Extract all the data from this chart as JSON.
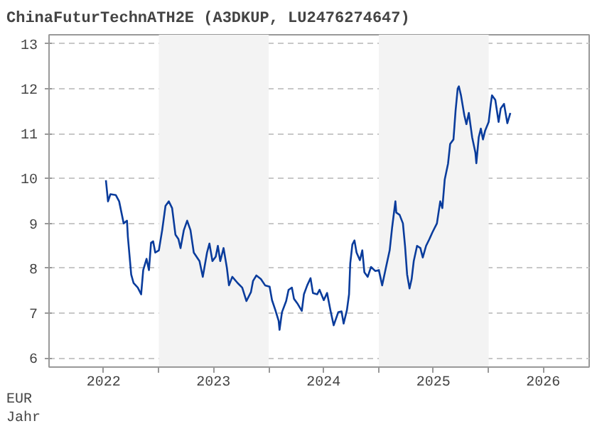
{
  "chart_data": {
    "type": "line",
    "title": "ChinaFuturTechnATH2E (A3DKUP, LU2476274647)",
    "xlabel": "Jahr",
    "ylabel": "EUR",
    "x": [
      "2022-07-09",
      "2022-07-16",
      "2022-07-24",
      "2022-08-11",
      "2022-08-22",
      "2022-09-06",
      "2022-09-17",
      "2022-09-20",
      "2022-10-01",
      "2022-10-09",
      "2022-10-23",
      "2022-11-03",
      "2022-11-10",
      "2022-11-21",
      "2022-11-29",
      "2022-12-06",
      "2022-12-13",
      "2022-12-20",
      "2023-01-01",
      "2023-01-12",
      "2023-01-23",
      "2023-02-03",
      "2023-02-14",
      "2023-02-25",
      "2023-03-07",
      "2023-03-14",
      "2023-03-25",
      "2023-04-05",
      "2023-04-16",
      "2023-04-27",
      "2023-05-16",
      "2023-05-27",
      "2023-06-10",
      "2023-06-18",
      "2023-06-28",
      "2023-07-09",
      "2023-07-16",
      "2023-07-24",
      "2023-08-04",
      "2023-08-15",
      "2023-08-22",
      "2023-09-02",
      "2023-09-20",
      "2023-10-05",
      "2023-10-19",
      "2023-11-03",
      "2023-11-10",
      "2023-11-21",
      "2023-12-06",
      "2023-12-20",
      "2024-01-04",
      "2024-01-12",
      "2024-01-23",
      "2024-02-03",
      "2024-02-06",
      "2024-02-14",
      "2024-02-28",
      "2024-03-07",
      "2024-03-18",
      "2024-03-25",
      "2024-04-05",
      "2024-04-20",
      "2024-04-27",
      "2024-05-08",
      "2024-05-19",
      "2024-05-27",
      "2024-06-10",
      "2024-06-18",
      "2024-07-02",
      "2024-07-13",
      "2024-07-24",
      "2024-08-04",
      "2024-08-19",
      "2024-08-30",
      "2024-09-06",
      "2024-09-17",
      "2024-09-24",
      "2024-09-28",
      "2024-10-05",
      "2024-10-12",
      "2024-10-19",
      "2024-10-30",
      "2024-11-07",
      "2024-11-14",
      "2024-11-25",
      "2024-12-06",
      "2024-12-20",
      "2025-01-01",
      "2025-01-12",
      "2025-01-26",
      "2025-02-06",
      "2025-02-14",
      "2025-02-25",
      "2025-02-28",
      "2025-03-11",
      "2025-03-22",
      "2025-03-29",
      "2025-04-05",
      "2025-04-13",
      "2025-04-20",
      "2025-04-27",
      "2025-05-08",
      "2025-05-19",
      "2025-05-27",
      "2025-06-07",
      "2025-06-18",
      "2025-06-28",
      "2025-07-13",
      "2025-07-24",
      "2025-07-31",
      "2025-08-08",
      "2025-08-19",
      "2025-08-26",
      "2025-09-06",
      "2025-09-13",
      "2025-09-20",
      "2025-09-24",
      "2025-10-01",
      "2025-10-12",
      "2025-10-19",
      "2025-10-27",
      "2025-11-07",
      "2025-11-18",
      "2025-11-21",
      "2025-11-29",
      "2025-12-06",
      "2025-12-13",
      "2025-12-20",
      "2026-01-01",
      "2026-01-08",
      "2026-01-12",
      "2026-01-23",
      "2026-02-03",
      "2026-02-10",
      "2026-02-21",
      "2026-03-04",
      "2026-03-14"
    ],
    "series": [
      {
        "color": "#0a3c9c",
        "values": [
          9.96,
          9.49,
          9.65,
          9.63,
          9.49,
          9.0,
          9.06,
          8.7,
          7.86,
          7.67,
          7.57,
          7.42,
          7.96,
          8.21,
          7.96,
          8.57,
          8.6,
          8.35,
          8.4,
          8.85,
          9.39,
          9.49,
          9.34,
          8.75,
          8.65,
          8.45,
          8.85,
          9.06,
          8.85,
          8.35,
          8.16,
          7.81,
          8.35,
          8.55,
          8.16,
          8.26,
          8.5,
          8.16,
          8.45,
          8.01,
          7.62,
          7.81,
          7.67,
          7.57,
          7.27,
          7.47,
          7.72,
          7.84,
          7.76,
          7.62,
          7.59,
          7.29,
          7.07,
          6.83,
          6.63,
          7.02,
          7.27,
          7.52,
          7.57,
          7.32,
          7.22,
          7.05,
          7.42,
          7.62,
          7.78,
          7.45,
          7.42,
          7.52,
          7.29,
          7.45,
          7.07,
          6.73,
          7.02,
          7.04,
          6.77,
          7.07,
          7.42,
          8.11,
          8.53,
          8.62,
          8.35,
          8.18,
          8.4,
          7.91,
          7.81,
          8.03,
          7.94,
          7.96,
          7.62,
          8.06,
          8.4,
          8.9,
          9.49,
          9.24,
          9.19,
          9.0,
          8.5,
          7.86,
          7.55,
          7.76,
          8.16,
          8.5,
          8.45,
          8.24,
          8.5,
          8.65,
          8.8,
          9.0,
          9.49,
          9.34,
          9.98,
          10.33,
          10.77,
          10.87,
          11.51,
          12.0,
          12.05,
          11.85,
          11.41,
          11.21,
          11.46,
          10.92,
          10.57,
          10.34,
          10.92,
          11.11,
          10.87,
          11.06,
          11.26,
          11.66,
          11.85,
          11.75,
          11.26,
          11.56,
          11.66,
          11.23,
          11.46
        ]
      }
    ],
    "xlim": [
      "2022-01-01",
      "2026-12-01"
    ],
    "xticks": [
      {
        "value": "2022-07-01",
        "label": "2022"
      },
      {
        "value": "2023-01-01",
        "label": null
      },
      {
        "value": "2023-07-01",
        "label": "2023"
      },
      {
        "value": "2024-01-01",
        "label": null
      },
      {
        "value": "2024-07-01",
        "label": "2024"
      },
      {
        "value": "2025-01-01",
        "label": null
      },
      {
        "value": "2025-07-01",
        "label": "2025"
      },
      {
        "value": "2026-01-01",
        "label": null
      },
      {
        "value": "2026-07-01",
        "label": "2026"
      }
    ],
    "ylim": [
      5.8,
      13.2
    ],
    "yticks": [
      6,
      7,
      8,
      9,
      10,
      11,
      12,
      13
    ],
    "bands": [
      {
        "axis": "x",
        "from": "2023-01-01",
        "to": "2024-01-01",
        "color": "#f3f3f3"
      },
      {
        "axis": "x",
        "from": "2025-01-01",
        "to": "2026-01-01",
        "color": "#f3f3f3"
      }
    ],
    "grid": "y",
    "line_style": "solid"
  }
}
